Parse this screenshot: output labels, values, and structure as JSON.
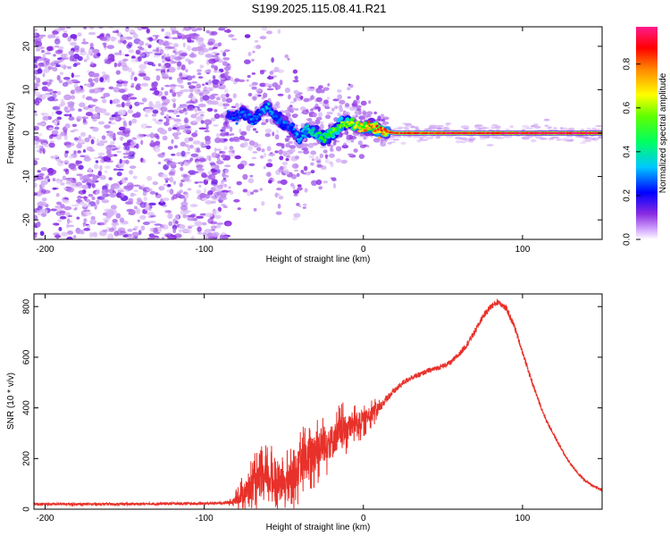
{
  "title": "S199.2025.115.08.41.R21",
  "colors": {
    "snr_line": "#e8312a",
    "frame": "#000000"
  },
  "chart_data": [
    {
      "type": "heatmap",
      "xlabel": "Height of straight line (km)",
      "ylabel": "Frequency (Hz)",
      "xlim": [
        -207,
        150
      ],
      "ylim": [
        -24.5,
        24.5
      ],
      "xticks": [
        -200,
        -100,
        0,
        100
      ],
      "xtick_labels": [
        "-200",
        "-100",
        "0",
        "100"
      ],
      "yticks": [
        -20,
        -10,
        0,
        10,
        20
      ],
      "ytick_labels": [
        "-20",
        "-10",
        "0",
        "10",
        "20"
      ],
      "colorbar": {
        "label": "Normalized spectral amplitude",
        "range": [
          0.0,
          0.97
        ],
        "ticks": [
          0.0,
          0.2,
          0.4,
          0.6,
          0.8
        ],
        "tick_labels": [
          "0.0",
          "0.2",
          "0.4",
          "0.6",
          "0.8"
        ],
        "colormap": [
          "#ffffff",
          "#8a2be2",
          "#0000ff",
          "#00c8ff",
          "#00ff00",
          "#ffff00",
          "#ff8800",
          "#ff0000",
          "#ff1493"
        ]
      },
      "description_regions": {
        "noise_region_km": [
          -207,
          -88
        ],
        "transition_region_km": [
          -88,
          15
        ],
        "carrier_region_km": [
          15,
          150
        ],
        "carrier_frequency_hz": 0.0
      },
      "carrier_track": {
        "x": [
          -85,
          -80,
          -75,
          -70,
          -65,
          -60,
          -55,
          -50,
          -45,
          -40,
          -35,
          -30,
          -25,
          -20,
          -15,
          -10,
          -5,
          0,
          5,
          10,
          15,
          20,
          40,
          60,
          80,
          100,
          120,
          150
        ],
        "y": [
          4.5,
          3.5,
          5.0,
          3.0,
          4.5,
          6.0,
          3.5,
          2.5,
          1.0,
          -1.5,
          1.0,
          0.0,
          -1.0,
          0.0,
          1.5,
          2.5,
          2.0,
          1.0,
          1.5,
          0.5,
          0.3,
          0.0,
          0.0,
          0.0,
          0.0,
          0.0,
          0.0,
          0.0
        ],
        "amplitude": [
          0.25,
          0.28,
          0.3,
          0.32,
          0.3,
          0.35,
          0.3,
          0.3,
          0.28,
          0.35,
          0.38,
          0.42,
          0.45,
          0.5,
          0.5,
          0.55,
          0.6,
          0.7,
          0.75,
          0.78,
          0.8,
          0.82,
          0.85,
          0.88,
          0.9,
          0.92,
          0.93,
          0.95
        ]
      }
    },
    {
      "type": "line",
      "xlabel": "Height of straight line (km)",
      "ylabel": "SNR (10 * v/v)",
      "xlim": [
        -207,
        150
      ],
      "ylim": [
        0,
        850
      ],
      "xticks": [
        -200,
        -100,
        0,
        100
      ],
      "xtick_labels": [
        "-200",
        "-100",
        "0",
        "100"
      ],
      "yticks": [
        0,
        200,
        400,
        600,
        800
      ],
      "ytick_labels": [
        "0",
        "200",
        "400",
        "600",
        "800"
      ],
      "series": [
        {
          "name": "SNR",
          "x": [
            -207,
            -180,
            -150,
            -120,
            -100,
            -90,
            -82,
            -78,
            -74,
            -70,
            -65,
            -60,
            -55,
            -50,
            -45,
            -40,
            -35,
            -30,
            -25,
            -20,
            -15,
            -10,
            -5,
            0,
            5,
            10,
            15,
            20,
            25,
            30,
            35,
            40,
            45,
            50,
            55,
            60,
            65,
            70,
            75,
            80,
            85,
            90,
            95,
            100,
            105,
            110,
            115,
            120,
            125,
            130,
            135,
            140,
            145,
            150
          ],
          "values": [
            20,
            20,
            20,
            22,
            22,
            24,
            28,
            50,
            70,
            90,
            110,
            120,
            110,
            100,
            130,
            170,
            200,
            240,
            260,
            270,
            300,
            320,
            340,
            350,
            380,
            400,
            440,
            470,
            500,
            520,
            530,
            545,
            555,
            565,
            580,
            610,
            650,
            700,
            760,
            800,
            820,
            790,
            720,
            620,
            520,
            430,
            350,
            290,
            230,
            180,
            140,
            110,
            90,
            75
          ],
          "noise_amplitude": [
            10,
            10,
            10,
            10,
            10,
            10,
            12,
            40,
            60,
            80,
            90,
            95,
            90,
            80,
            90,
            100,
            110,
            110,
            100,
            90,
            80,
            70,
            60,
            50,
            40,
            35,
            30,
            25,
            22,
            20,
            20,
            20,
            20,
            20,
            20,
            22,
            25,
            25,
            25,
            25,
            25,
            25,
            25,
            22,
            20,
            18,
            16,
            15,
            14,
            12,
            12,
            10,
            10,
            10
          ]
        }
      ]
    }
  ]
}
